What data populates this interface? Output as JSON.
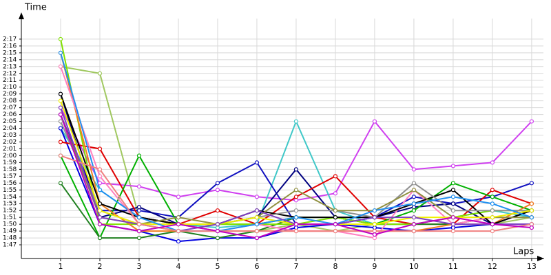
{
  "chart_data": {
    "type": "line",
    "x_label": "Laps",
    "y_label": "Time",
    "grid": true,
    "x": [
      1,
      2,
      3,
      4,
      5,
      6,
      7,
      8,
      9,
      10,
      11,
      12,
      13
    ],
    "xlim": [
      0,
      13.3
    ],
    "xticks": [
      1,
      2,
      3,
      4,
      5,
      6,
      7,
      8,
      9,
      10,
      11,
      12,
      13
    ],
    "ylim": [
      105,
      140
    ],
    "yticks": [
      {
        "value": 107,
        "label": "1:47"
      },
      {
        "value": 108,
        "label": "1:48"
      },
      {
        "value": 109,
        "label": "1:49"
      },
      {
        "value": 110,
        "label": "1:50"
      },
      {
        "value": 111,
        "label": "1:51"
      },
      {
        "value": 112,
        "label": "1:52"
      },
      {
        "value": 113,
        "label": "1:53"
      },
      {
        "value": 114,
        "label": "1:54"
      },
      {
        "value": 115,
        "label": "1:55"
      },
      {
        "value": 116,
        "label": "1:56"
      },
      {
        "value": 117,
        "label": "1:57"
      },
      {
        "value": 118,
        "label": "1:58"
      },
      {
        "value": 119,
        "label": "1:59"
      },
      {
        "value": 120,
        "label": "2:00"
      },
      {
        "value": 121,
        "label": "2:01"
      },
      {
        "value": 122,
        "label": "2:02"
      },
      {
        "value": 123,
        "label": "2:03"
      },
      {
        "value": 124,
        "label": "2:04"
      },
      {
        "value": 125,
        "label": "2:05"
      },
      {
        "value": 126,
        "label": "2:06"
      },
      {
        "value": 127,
        "label": "2:07"
      },
      {
        "value": 128,
        "label": "2:08"
      },
      {
        "value": 129,
        "label": "2:09"
      },
      {
        "value": 130,
        "label": "2:10"
      },
      {
        "value": 131,
        "label": "2:11"
      },
      {
        "value": 132,
        "label": "2:12"
      },
      {
        "value": 133,
        "label": "2:13"
      },
      {
        "value": 134,
        "label": "2:14"
      },
      {
        "value": 135,
        "label": "2:15"
      },
      {
        "value": 136,
        "label": "2:16"
      },
      {
        "value": 137,
        "label": "2:17"
      }
    ],
    "series": [
      {
        "color": "#a0c860",
        "values": [
          133,
          132,
          111,
          110,
          109,
          109,
          110,
          109,
          110,
          110,
          110,
          110,
          111
        ]
      },
      {
        "color": "#d040f0",
        "values": [
          127,
          116,
          115.5,
          114,
          115,
          114,
          113.5,
          114.5,
          125,
          118,
          118.5,
          119,
          125
        ]
      },
      {
        "color": "#40c8c8",
        "values": [
          124,
          115,
          111,
          110,
          109.5,
          110,
          125,
          112,
          110,
          110,
          111,
          112,
          111
        ]
      },
      {
        "color": "#0000e0",
        "values": [
          124,
          110,
          109,
          107.5,
          108,
          108,
          109.5,
          110,
          109.5,
          109,
          109.5,
          110,
          110
        ]
      },
      {
        "color": "#1010c0",
        "values": [
          126,
          112,
          112,
          111,
          116,
          119,
          110,
          110,
          111,
          114,
          113,
          114,
          116
        ]
      },
      {
        "color": "#000080",
        "values": [
          129,
          111,
          112.5,
          110,
          110,
          111,
          118,
          111,
          111,
          112.5,
          113,
          110,
          112
        ]
      },
      {
        "color": "#e00000",
        "values": [
          122,
          121,
          111,
          110,
          112,
          110,
          114,
          117,
          111,
          110,
          110,
          115,
          113
        ]
      },
      {
        "color": "#00b000",
        "values": [
          120,
          108,
          120,
          110,
          110,
          110,
          111,
          111,
          110,
          112,
          116,
          114,
          112
        ]
      },
      {
        "color": "#208020",
        "values": [
          116,
          108,
          108,
          109,
          108,
          109,
          111,
          111,
          110,
          110,
          110,
          111,
          111
        ]
      },
      {
        "color": "#80e000",
        "values": [
          137,
          110,
          110,
          110,
          110,
          110,
          110,
          111,
          110,
          110,
          111,
          112,
          112
        ]
      },
      {
        "color": "#f08020",
        "values": [
          135,
          113,
          109,
          109,
          109,
          109,
          109,
          109,
          109,
          109,
          110,
          110,
          113
        ]
      },
      {
        "color": "#ff80c0",
        "values": [
          133,
          117,
          110,
          110,
          109,
          110,
          109,
          109,
          108,
          115,
          110,
          111,
          111
        ]
      },
      {
        "color": "#000000",
        "values": [
          129,
          113,
          111,
          110,
          110,
          112,
          111,
          111,
          111,
          113,
          115,
          110,
          112
        ]
      },
      {
        "color": "#909090",
        "values": [
          125,
          112,
          110,
          110,
          110,
          111,
          112,
          112,
          111,
          116,
          112,
          112,
          112
        ]
      },
      {
        "color": "#909040",
        "values": [
          126,
          111,
          110,
          111,
          110,
          111,
          115,
          112,
          112,
          115,
          111,
          111,
          111
        ]
      },
      {
        "color": "#f0f000",
        "values": [
          128,
          112,
          110,
          110,
          110,
          111,
          110,
          110,
          110,
          111,
          111,
          111,
          112
        ]
      },
      {
        "color": "#2090f0",
        "values": [
          135,
          115,
          111,
          109,
          109,
          110,
          111,
          110,
          112,
          113,
          114,
          113,
          111
        ]
      },
      {
        "color": "#8040c0",
        "values": [
          127,
          111,
          110,
          109,
          110,
          112,
          110,
          110,
          111,
          111,
          110,
          110,
          110
        ]
      },
      {
        "color": "#f08080",
        "values": [
          120,
          118,
          110,
          109,
          109,
          109,
          109,
          109,
          109,
          109,
          109,
          109,
          110
        ]
      },
      {
        "color": "#c000c0",
        "values": [
          126,
          110,
          109,
          110,
          109,
          108,
          110,
          110,
          108.5,
          110,
          111,
          110,
          109.5
        ]
      }
    ]
  }
}
